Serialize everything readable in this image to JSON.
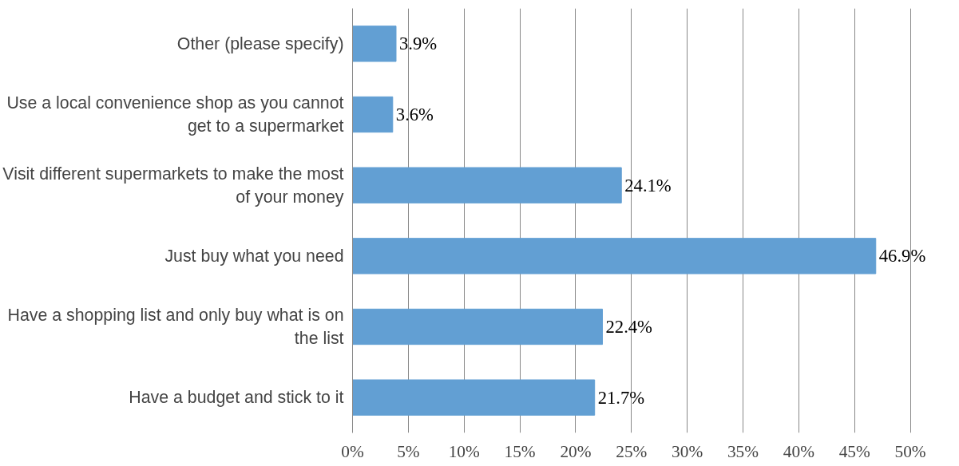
{
  "chart_data": {
    "type": "bar",
    "orientation": "horizontal",
    "categories": [
      "Other (please specify)",
      "Use a local convenience shop as you cannot get to a supermarket",
      "Visit different supermarkets to make the most of your money",
      "Just buy what you need",
      "Have a shopping list and only buy what is on the list",
      "Have a budget and stick to it"
    ],
    "values": [
      3.9,
      3.6,
      24.1,
      46.9,
      22.4,
      21.7
    ],
    "value_labels": [
      "3.9%",
      "3.6%",
      "24.1%",
      "46.9%",
      "22.4%",
      "21.7%"
    ],
    "color": "#629fd3",
    "xlim": [
      0,
      50
    ],
    "xticks": [
      {
        "value": 0,
        "label": "0%"
      },
      {
        "value": 5,
        "label": "5%"
      },
      {
        "value": 10,
        "label": "10%"
      },
      {
        "value": 15,
        "label": "15%"
      },
      {
        "value": 20,
        "label": "20%"
      },
      {
        "value": 25,
        "label": "25%"
      },
      {
        "value": 30,
        "label": "30%"
      },
      {
        "value": 35,
        "label": "35%"
      },
      {
        "value": 40,
        "label": "40%"
      },
      {
        "value": 45,
        "label": "45%"
      },
      {
        "value": 50,
        "label": "50%"
      }
    ],
    "grid": "x"
  }
}
